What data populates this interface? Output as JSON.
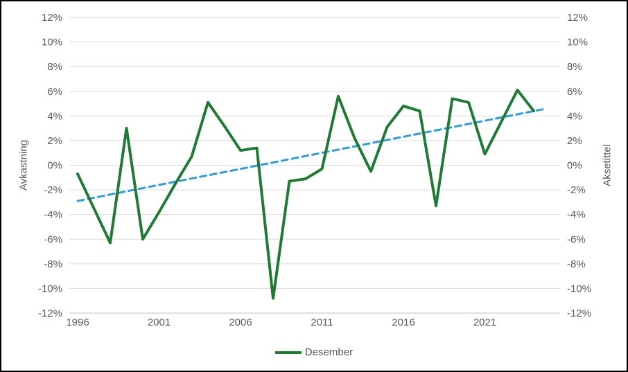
{
  "chart": {
    "left_axis_title": "Avkastning",
    "right_axis_title": "Aksetittel",
    "legend_label": "Desember",
    "colors": {
      "series": "#1F7A34",
      "trend": "#2E9BD9",
      "gridline": "#D9D9D9",
      "axis_line": "#BFBFBF",
      "tick_text": "#595959",
      "background": "#FFFFFF",
      "border": "#000000"
    }
  },
  "chart_data": {
    "type": "line",
    "title": "",
    "xlabel": "",
    "ylabel_left": "Avkastning",
    "ylabel_right": "Aksetittel",
    "legend_entries": [
      "Desember"
    ],
    "legend_position": "bottom",
    "grid": true,
    "x": [
      1996,
      1997,
      1998,
      1999,
      2000,
      2001,
      2002,
      2003,
      2004,
      2005,
      2006,
      2007,
      2008,
      2009,
      2010,
      2011,
      2012,
      2013,
      2014,
      2015,
      2016,
      2017,
      2018,
      2019,
      2020,
      2021,
      2022,
      2023,
      2024
    ],
    "series": [
      {
        "name": "Desember",
        "values": [
          -0.7,
          -3.5,
          -6.3,
          3.0,
          -6.0,
          -3.8,
          -1.5,
          0.7,
          5.1,
          3.2,
          1.2,
          1.4,
          -10.8,
          -1.3,
          -1.1,
          -0.3,
          5.6,
          2.2,
          -0.5,
          3.1,
          4.8,
          4.4,
          -3.3,
          5.4,
          5.1,
          0.9,
          3.5,
          6.1,
          4.4
        ]
      }
    ],
    "trendline": {
      "style": "dashed",
      "x_start": 1996,
      "value_start": -2.9,
      "x_end": 2024.8,
      "value_end": 4.6
    },
    "xticks": [
      1996,
      2001,
      2006,
      2011,
      2016,
      2021
    ],
    "ylim": [
      -12,
      12
    ],
    "ytick_step": 2,
    "ytick_suffix": "%",
    "dual_y_axis": true
  }
}
